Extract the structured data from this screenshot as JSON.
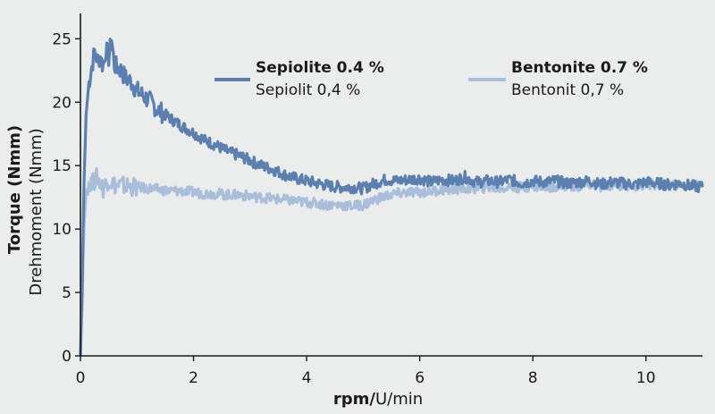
{
  "chart_data": {
    "type": "line",
    "title": "",
    "xlabel": {
      "primary": "rpm",
      "separator": "/",
      "secondary": "U/min"
    },
    "ylabel": {
      "primary": "Torque (Nmm)",
      "secondary": "Drehmoment (Nmm)"
    },
    "xlim": [
      0,
      11
    ],
    "ylim": [
      0,
      27
    ],
    "xticks": [
      0,
      2,
      4,
      6,
      8,
      10
    ],
    "yticks": [
      0,
      5,
      10,
      15,
      20,
      25
    ],
    "grid": false,
    "legend_placement": "top",
    "series": [
      {
        "name": "Sepiolite 0.4 %",
        "name_de": "Sepiolit 0,4 %",
        "color": "#5b80b0",
        "x": [
          0,
          0.03,
          0.06,
          0.1,
          0.15,
          0.2,
          0.25,
          0.3,
          0.35,
          0.4,
          0.45,
          0.5,
          0.55,
          0.6,
          0.7,
          0.8,
          0.9,
          1.0,
          1.2,
          1.4,
          1.6,
          1.8,
          2.0,
          2.2,
          2.4,
          2.6,
          2.8,
          3.0,
          3.2,
          3.4,
          3.6,
          3.8,
          4.0,
          4.2,
          4.4,
          4.6,
          4.8,
          5.0,
          5.2,
          5.4,
          5.6,
          5.8,
          6.0,
          6.2,
          6.4,
          6.6,
          6.8,
          7.0,
          7.2,
          7.4,
          7.6,
          7.8,
          8.0,
          8.2,
          8.4,
          8.6,
          8.8,
          9.0,
          9.2,
          9.4,
          9.6,
          9.8,
          10.0,
          10.2,
          10.4,
          10.6,
          10.8,
          11.0
        ],
        "y": [
          0,
          5,
          13,
          19,
          21.5,
          22.8,
          24,
          23.3,
          23.6,
          22.8,
          24.2,
          23.5,
          25,
          22.9,
          22.6,
          21.9,
          21.6,
          20.9,
          20.2,
          19.3,
          18.7,
          18.1,
          17.6,
          17.0,
          16.6,
          16.1,
          15.8,
          15.4,
          15.0,
          14.7,
          14.3,
          14.0,
          13.8,
          13.6,
          13.4,
          13.3,
          13.3,
          13.2,
          13.6,
          13.9,
          13.8,
          13.9,
          14.0,
          13.7,
          13.9,
          13.8,
          14.1,
          13.7,
          13.8,
          13.7,
          13.9,
          13.6,
          13.8,
          13.7,
          13.8,
          13.6,
          13.7,
          13.8,
          13.5,
          13.7,
          13.6,
          13.5,
          13.7,
          13.6,
          13.5,
          13.6,
          13.4,
          13.3
        ]
      },
      {
        "name": "Bentonite 0.7 %",
        "name_de": "Bentonit 0,7 %",
        "color": "#a9bedb",
        "x": [
          0,
          0.03,
          0.06,
          0.1,
          0.15,
          0.2,
          0.3,
          0.4,
          0.5,
          0.6,
          0.8,
          1.0,
          1.2,
          1.4,
          1.6,
          1.8,
          2.0,
          2.2,
          2.4,
          2.6,
          2.8,
          3.0,
          3.2,
          3.4,
          3.6,
          3.8,
          4.0,
          4.2,
          4.4,
          4.6,
          4.8,
          5.0,
          5.2,
          5.4,
          5.6,
          5.8,
          6.0,
          6.2,
          6.4,
          6.6,
          6.8,
          7.0,
          7.2,
          7.4,
          7.6,
          7.8,
          8.0,
          8.2,
          8.4,
          8.6,
          8.8,
          9.0,
          9.2,
          9.4,
          9.6,
          9.8,
          10.0,
          10.2,
          10.4,
          10.6,
          10.8,
          11.0
        ],
        "y": [
          0,
          4,
          10,
          12.8,
          13.8,
          13.6,
          14.1,
          13.2,
          13.9,
          13.5,
          13.4,
          13.3,
          13.2,
          13.1,
          13.0,
          13.0,
          12.9,
          12.8,
          12.8,
          12.7,
          12.7,
          12.6,
          12.5,
          12.4,
          12.3,
          12.2,
          12.1,
          12.0,
          11.9,
          11.9,
          11.8,
          11.9,
          12.3,
          12.6,
          12.8,
          12.9,
          12.9,
          13.0,
          13.1,
          13.1,
          13.2,
          13.2,
          13.3,
          13.2,
          13.3,
          13.3,
          13.4,
          13.3,
          13.4,
          13.4,
          13.4,
          13.5,
          13.4,
          13.5,
          13.5,
          13.4,
          13.5,
          13.5,
          13.4,
          13.5,
          13.4,
          13.4
        ]
      }
    ]
  }
}
